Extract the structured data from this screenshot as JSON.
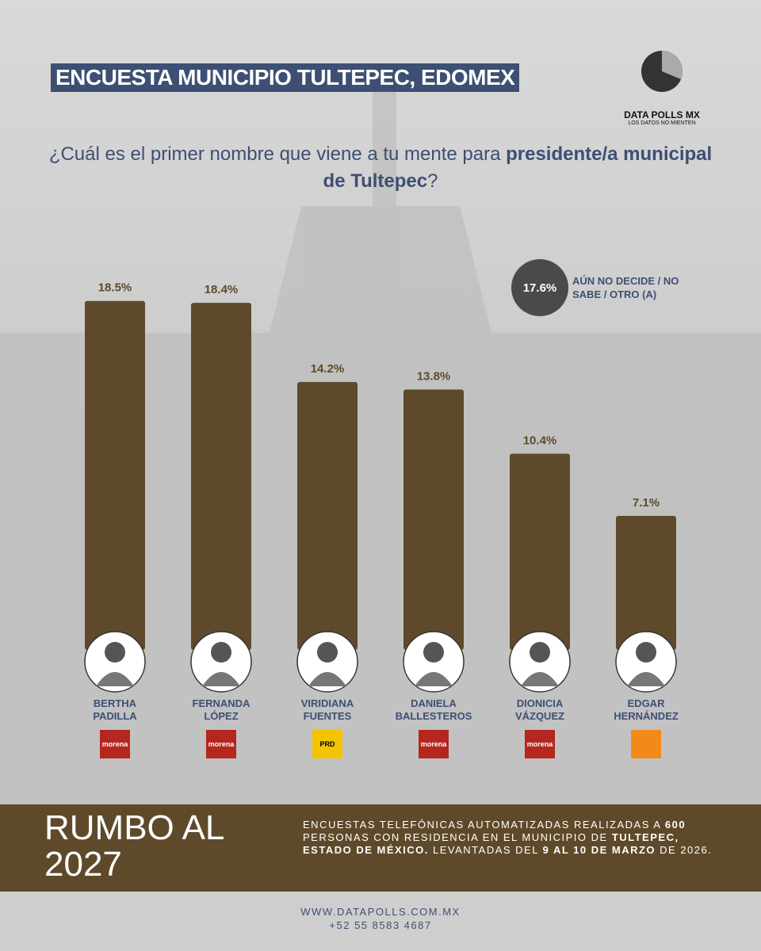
{
  "chart_data": {
    "type": "bar",
    "title": "ENCUESTA MUNICIPIO TULTEPEC, EDOMEX",
    "question": [
      "¿Cuál es el primer nombre que viene a tu mente para ",
      "presidente/a municipal de Tultepec",
      "?"
    ],
    "categories": [
      "BERTHA PADILLA",
      "FERNANDA LÓPEZ",
      "VIRIDIANA FUENTES",
      "DANIELA BALLESTEROS",
      "DIONICIA VÁZQUEZ",
      "EDGAR HERNÁNDEZ"
    ],
    "parties": [
      "morena",
      "morena",
      "PRD",
      "morena",
      "morena",
      null
    ],
    "party_colors": [
      "#b5261e",
      "#b5261e",
      "#f5c400",
      "#b5261e",
      "#b5261e",
      "#f28a1a"
    ],
    "values": [
      18.5,
      18.4,
      14.2,
      13.8,
      10.4,
      7.1
    ],
    "value_labels": [
      "18.5%",
      "18.4%",
      "14.2%",
      "13.8%",
      "10.4%",
      "7.1%"
    ],
    "color": "#5e4a2a",
    "undecided": {
      "value": 17.6,
      "value_label": "17.6%",
      "label": "AÚN NO DECIDE / NO SABE / OTRO (A)"
    },
    "brand": {
      "name": "DATA POLLS MX",
      "slogan": "LOS DATOS NO MIENTEN"
    },
    "footer": {
      "headline": "RUMBO AL 2027",
      "methodology": [
        "ENCUESTAS TELEFÓNICAS AUTOMATIZADAS REALIZADAS A ",
        "600",
        " PERSONAS CON RESIDENCIA EN EL MUNICIPIO DE ",
        "TULTEPEC, ESTADO DE MÉXICO.",
        " LEVANTADAS DEL ",
        "9 AL 10 DE MARZO",
        " DE 2026."
      ],
      "website": "WWW.DATAPOLLS.COM.MX",
      "phone": "+52 55 8583 4687"
    }
  }
}
